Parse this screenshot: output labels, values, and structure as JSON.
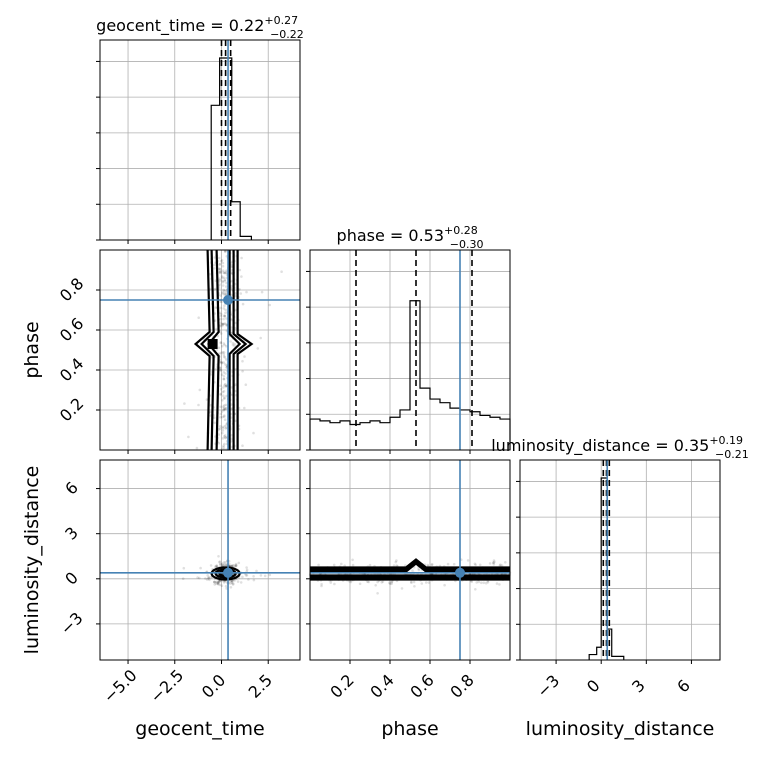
{
  "chart_data": {
    "type": "corner",
    "parameters": [
      "geocent_time",
      "phase",
      "luminosity_distance"
    ],
    "axis_labels": [
      "geocent_time",
      "phase",
      "luminosity_distance"
    ],
    "ranges": {
      "geocent_time": [
        -6.5,
        4.2
      ],
      "phase": [
        0.0,
        1.0
      ],
      "luminosity_distance": [
        -5.4,
        7.9
      ]
    },
    "tick_labels": {
      "geocent_time": [
        "−5.0",
        "−2.5",
        "0.0",
        "2.5"
      ],
      "phase": [
        "0.2",
        "0.4",
        "0.6",
        "0.8"
      ],
      "luminosity_distance": [
        "−3",
        "0",
        "3",
        "6"
      ]
    },
    "tick_values": {
      "geocent_time": [
        -5.0,
        -2.5,
        0.0,
        2.5
      ],
      "phase": [
        0.2,
        0.4,
        0.6,
        0.8
      ],
      "luminosity_distance": [
        -3,
        0,
        3,
        6
      ]
    },
    "titles": [
      {
        "name": "geocent_time",
        "median": "0.22",
        "plus": "+0.27",
        "minus": "−0.22"
      },
      {
        "name": "phase",
        "median": "0.53",
        "plus": "+0.28",
        "minus": "−0.30"
      },
      {
        "name": "luminosity_distance",
        "median": "0.35",
        "plus": "+0.19",
        "minus": "−0.21"
      }
    ],
    "truths": {
      "geocent_time": 0.35,
      "phase": 0.75,
      "luminosity_distance": 0.4
    },
    "truth_color": "#4682b4",
    "quantiles": {
      "geocent_time": [
        0.0,
        0.22,
        0.49
      ],
      "phase": [
        0.23,
        0.53,
        0.81
      ],
      "luminosity_distance": [
        0.14,
        0.35,
        0.54
      ]
    },
    "histograms": {
      "geocent_time": {
        "edges": [
          -0.55,
          -0.1,
          0.0,
          0.22,
          0.55,
          1.0,
          1.6
        ],
        "counts": [
          0.74,
          1.0,
          1.0,
          1.0,
          0.21,
          0.02
        ]
      },
      "phase": {
        "edges": [
          0.0,
          0.05,
          0.1,
          0.15,
          0.2,
          0.25,
          0.3,
          0.35,
          0.4,
          0.45,
          0.5,
          0.55,
          0.6,
          0.65,
          0.7,
          0.75,
          0.8,
          0.85,
          0.9,
          0.95,
          1.0
        ],
        "counts": [
          0.17,
          0.16,
          0.15,
          0.16,
          0.14,
          0.15,
          0.16,
          0.15,
          0.18,
          0.22,
          0.82,
          0.34,
          0.28,
          0.26,
          0.23,
          0.22,
          0.21,
          0.19,
          0.18,
          0.17
        ]
      },
      "luminosity_distance": {
        "edges": [
          -0.8,
          -0.3,
          0.0,
          0.2,
          0.4,
          0.7,
          1.5
        ],
        "counts": [
          0.03,
          0.07,
          1.0,
          1.0,
          0.17,
          0.02
        ]
      }
    },
    "grid": true
  }
}
